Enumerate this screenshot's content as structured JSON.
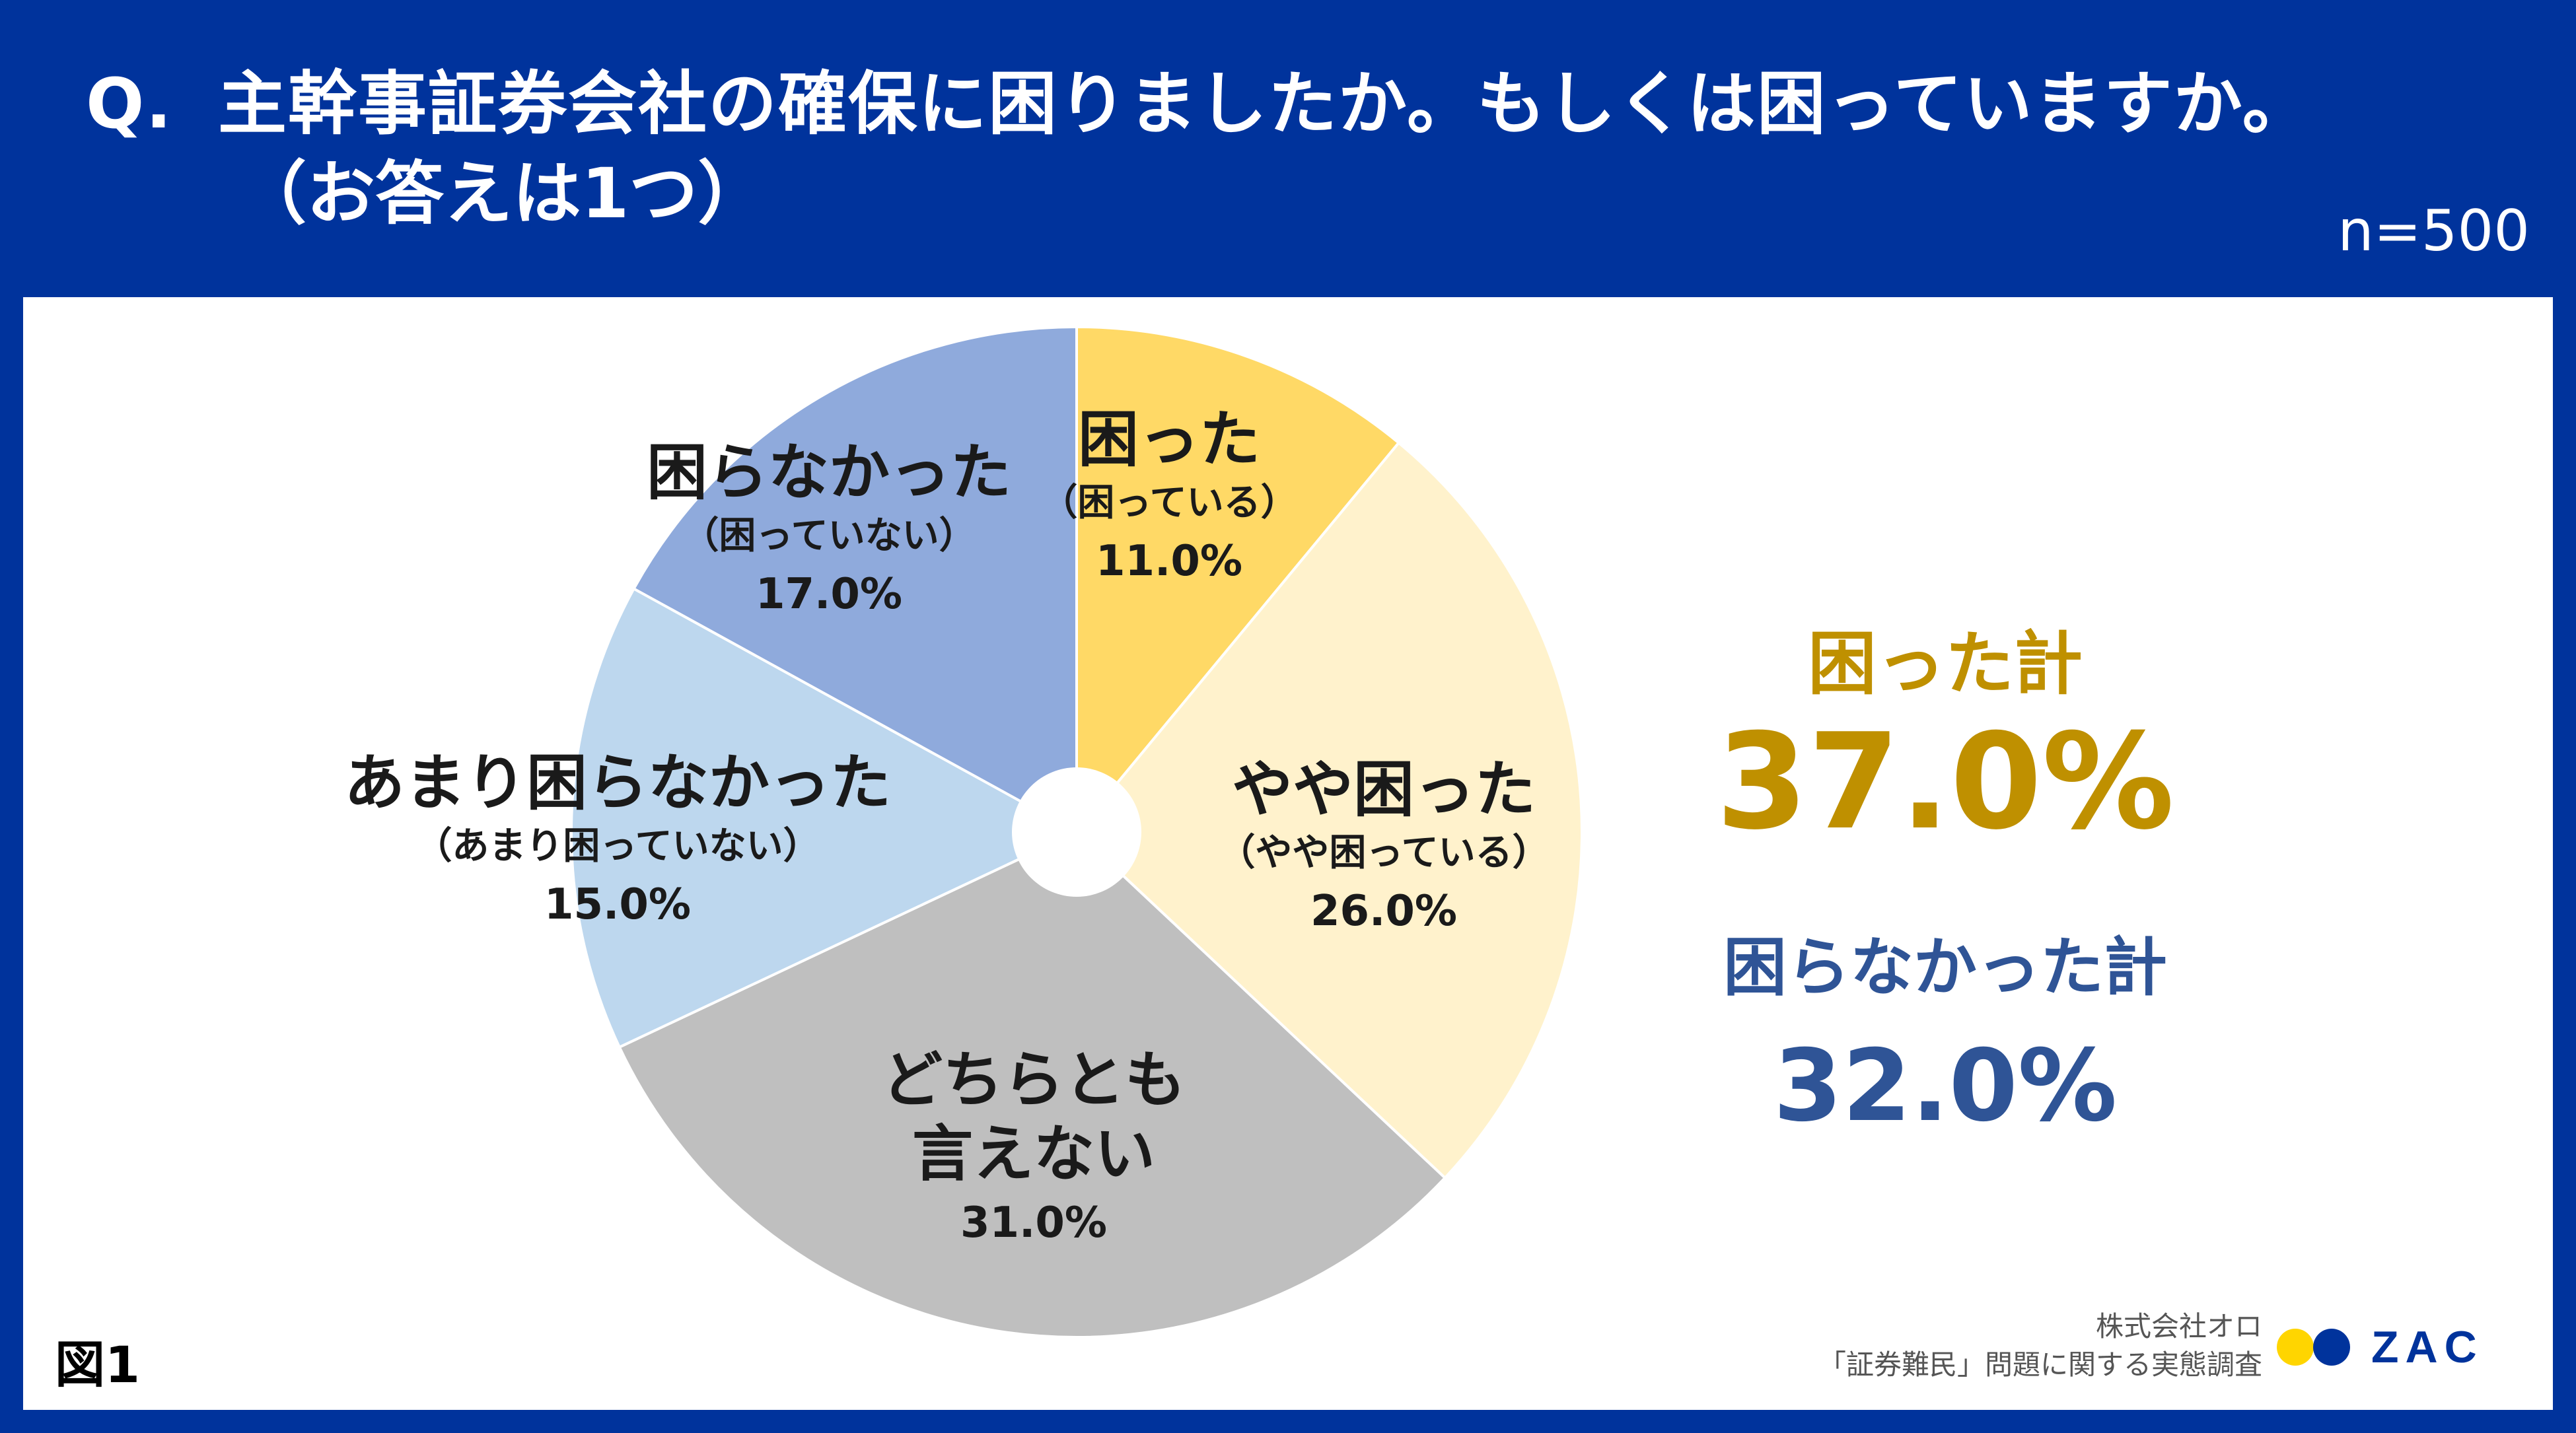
{
  "header": {
    "question_prefix": "Q.",
    "question_line1": "主幹事証券会社の確保に困りましたか。もしくは困っていますか。",
    "question_line2": "（お答えは1つ）",
    "sample_size": "n=500"
  },
  "chart_data": {
    "type": "pie",
    "title": "主幹事証券会社の確保に困りましたか。もしくは困っていますか。",
    "unit": "%",
    "start_angle": "top",
    "direction": "clockwise",
    "donut_hole": true,
    "slices": [
      {
        "label": "困った",
        "sublabel": "（困っている）",
        "value": 11.0,
        "value_label": "11.0%",
        "color": "#ffd966"
      },
      {
        "label": "やや困った",
        "sublabel": "（やや困っている）",
        "value": 26.0,
        "value_label": "26.0%",
        "color": "#fff2cc"
      },
      {
        "label": "どちらとも言えない",
        "label_lines": [
          "どちらとも",
          "言えない"
        ],
        "sublabel": "",
        "value": 31.0,
        "value_label": "31.0%",
        "color": "#bfbfbf"
      },
      {
        "label": "あまり困らなかった",
        "sublabel": "（あまり困っていない）",
        "value": 15.0,
        "value_label": "15.0%",
        "color": "#bdd7ee"
      },
      {
        "label": "困らなかった",
        "sublabel": "（困っていない）",
        "value": 17.0,
        "value_label": "17.0%",
        "color": "#8faadc"
      }
    ]
  },
  "totals": {
    "trouble": {
      "label": "困った計",
      "value": "37.0%",
      "color": "#bf9000"
    },
    "no_trouble": {
      "label": "困らなかった計",
      "value": "32.0%",
      "color": "#2f5496"
    }
  },
  "footer": {
    "figure_label": "図1",
    "credit_company": "株式会社オロ",
    "credit_survey": "「証券難民」問題に関する実態調査",
    "logo_text": "ZAC",
    "logo_colors": [
      "#ffd500",
      "#00339c"
    ]
  }
}
